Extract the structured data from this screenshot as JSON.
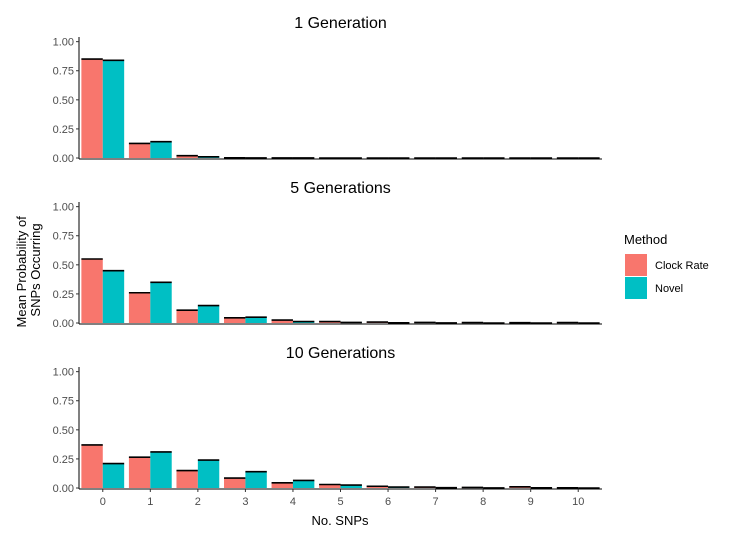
{
  "chart_data": {
    "type": "bar",
    "xlabel": "No. SNPs",
    "ylabel_lines": [
      "Mean Probability of",
      "SNPs Occurring"
    ],
    "categories": [
      "0",
      "1",
      "2",
      "3",
      "4",
      "5",
      "6",
      "7",
      "8",
      "9",
      "10"
    ],
    "yticks": [
      "0.00",
      "0.25",
      "0.50",
      "0.75",
      "1.00"
    ],
    "ylim": [
      0,
      1.04
    ],
    "legend": {
      "title": "Method",
      "placement": "right",
      "entries": [
        {
          "name": "Clock Rate",
          "color": "#F8766D"
        },
        {
          "name": "Novel",
          "color": "#00BFC4"
        }
      ]
    },
    "panels": [
      {
        "title": "1 Generation",
        "series": [
          {
            "name": "Clock Rate",
            "color": "#F8766D",
            "values": [
              0.85,
              0.125,
              0.02,
              0.002,
              0.001,
              0,
              0,
              0,
              0,
              0,
              0
            ]
          },
          {
            "name": "Novel",
            "color": "#00BFC4",
            "values": [
              0.84,
              0.14,
              0.01,
              0.001,
              0.001,
              0,
              0,
              0,
              0,
              0,
              0
            ]
          }
        ]
      },
      {
        "title": "5 Generations",
        "series": [
          {
            "name": "Clock Rate",
            "color": "#F8766D",
            "values": [
              0.55,
              0.26,
              0.11,
              0.045,
              0.025,
              0.012,
              0.008,
              0.005,
              0.004,
              0.003,
              0.004
            ]
          },
          {
            "name": "Novel",
            "color": "#00BFC4",
            "values": [
              0.45,
              0.35,
              0.15,
              0.05,
              0.012,
              0.005,
              0.002,
              0.001,
              0,
              0,
              0
            ]
          }
        ]
      },
      {
        "title": "10 Generations",
        "series": [
          {
            "name": "Clock Rate",
            "color": "#F8766D",
            "values": [
              0.37,
              0.265,
              0.15,
              0.085,
              0.045,
              0.03,
              0.015,
              0.008,
              0.005,
              0.01,
              0.002
            ]
          },
          {
            "name": "Novel",
            "color": "#00BFC4",
            "values": [
              0.21,
              0.31,
              0.24,
              0.14,
              0.065,
              0.025,
              0.008,
              0.003,
              0.001,
              0.002,
              0
            ]
          }
        ]
      }
    ]
  }
}
